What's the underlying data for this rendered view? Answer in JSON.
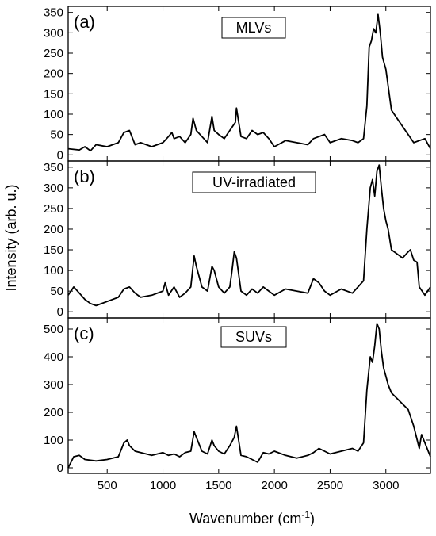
{
  "chart_data": {
    "type": "line",
    "layout": "stacked-panels",
    "xlabel": "Wavenumber (cm",
    "xlabel_superscript": "-1",
    "xlabel_suffix": ")",
    "ylabel": "Intensity (arb. u.)",
    "xlim": [
      150,
      3400
    ],
    "x_ticks": [
      500,
      1000,
      1500,
      2000,
      2500,
      3000
    ],
    "line_color": "#000000",
    "panels": [
      {
        "letter": "(a)",
        "label": "MLVs",
        "ylim": [
          -15,
          365
        ],
        "y_ticks": [
          0,
          50,
          100,
          150,
          200,
          250,
          300,
          350
        ],
        "series": [
          {
            "x": [
              150,
              250,
              300,
              350,
              400,
              500,
              600,
              650,
              700,
              750,
              800,
              900,
              1000,
              1050,
              1080,
              1100,
              1150,
              1200,
              1250,
              1270,
              1300,
              1350,
              1400,
              1440,
              1460,
              1500,
              1550,
              1600,
              1650,
              1660,
              1700,
              1750,
              1800,
              1850,
              1900,
              1950,
              2000,
              2100,
              2200,
              2300,
              2350,
              2400,
              2450,
              2500,
              2600,
              2700,
              2750,
              2800,
              2830,
              2850,
              2870,
              2890,
              2910,
              2930,
              2950,
              2970,
              3000,
              3020,
              3050,
              3100,
              3150,
              3200,
              3250,
              3300,
              3350,
              3400
            ],
            "y": [
              15,
              12,
              20,
              10,
              25,
              20,
              30,
              55,
              60,
              25,
              30,
              20,
              30,
              45,
              55,
              40,
              45,
              30,
              50,
              90,
              60,
              45,
              30,
              95,
              60,
              50,
              40,
              60,
              80,
              115,
              45,
              40,
              60,
              50,
              55,
              40,
              20,
              35,
              30,
              25,
              40,
              45,
              50,
              30,
              40,
              35,
              30,
              40,
              120,
              265,
              280,
              310,
              300,
              345,
              300,
              240,
              210,
              170,
              110,
              90,
              70,
              50,
              30,
              35,
              40,
              15
            ]
          }
        ]
      },
      {
        "letter": "(b)",
        "label": "UV-irradiated",
        "ylim": [
          -15,
          365
        ],
        "y_ticks": [
          0,
          50,
          100,
          150,
          200,
          250,
          300,
          350
        ],
        "series": [
          {
            "x": [
              150,
              200,
              250,
              300,
              350,
              400,
              500,
              600,
              650,
              700,
              750,
              800,
              900,
              1000,
              1020,
              1050,
              1100,
              1150,
              1200,
              1250,
              1280,
              1300,
              1350,
              1400,
              1440,
              1460,
              1500,
              1550,
              1600,
              1620,
              1640,
              1660,
              1700,
              1750,
              1800,
              1850,
              1900,
              1950,
              2000,
              2100,
              2200,
              2300,
              2350,
              2400,
              2450,
              2500,
              2600,
              2700,
              2750,
              2800,
              2830,
              2860,
              2880,
              2900,
              2920,
              2940,
              2960,
              2980,
              3000,
              3020,
              3050,
              3100,
              3150,
              3200,
              3220,
              3250,
              3280,
              3300,
              3350,
              3400
            ],
            "y": [
              40,
              60,
              45,
              30,
              20,
              15,
              25,
              35,
              55,
              60,
              45,
              35,
              40,
              50,
              70,
              40,
              60,
              35,
              45,
              60,
              135,
              110,
              60,
              50,
              110,
              100,
              60,
              45,
              60,
              100,
              145,
              130,
              50,
              40,
              55,
              45,
              60,
              50,
              40,
              55,
              50,
              45,
              80,
              70,
              50,
              40,
              55,
              45,
              60,
              75,
              200,
              300,
              320,
              280,
              340,
              355,
              300,
              250,
              220,
              200,
              150,
              140,
              130,
              145,
              150,
              125,
              120,
              60,
              40,
              60
            ]
          }
        ]
      },
      {
        "letter": "(c)",
        "label": "SUVs",
        "ylim": [
          -20,
          540
        ],
        "y_ticks": [
          0,
          100,
          200,
          300,
          400,
          500
        ],
        "series": [
          {
            "x": [
              150,
              200,
              250,
              300,
              400,
              500,
              600,
              650,
              680,
              700,
              750,
              800,
              900,
              1000,
              1050,
              1100,
              1150,
              1200,
              1250,
              1280,
              1300,
              1350,
              1400,
              1440,
              1460,
              1500,
              1550,
              1600,
              1640,
              1660,
              1700,
              1750,
              1800,
              1850,
              1900,
              1950,
              2000,
              2100,
              2200,
              2300,
              2350,
              2400,
              2450,
              2500,
              2600,
              2700,
              2750,
              2800,
              2830,
              2860,
              2880,
              2900,
              2920,
              2940,
              2960,
              2980,
              3000,
              3020,
              3050,
              3100,
              3150,
              3200,
              3250,
              3300,
              3320,
              3350,
              3380,
              3400
            ],
            "y": [
              0,
              40,
              45,
              30,
              25,
              30,
              40,
              90,
              100,
              80,
              60,
              55,
              45,
              55,
              45,
              50,
              40,
              55,
              60,
              130,
              110,
              60,
              50,
              100,
              80,
              60,
              50,
              80,
              110,
              150,
              45,
              40,
              30,
              20,
              55,
              50,
              60,
              45,
              35,
              45,
              55,
              70,
              60,
              50,
              60,
              70,
              60,
              90,
              280,
              400,
              380,
              440,
              520,
              500,
              420,
              360,
              330,
              300,
              270,
              250,
              230,
              210,
              150,
              70,
              120,
              90,
              60,
              40
            ]
          }
        ]
      }
    ]
  }
}
